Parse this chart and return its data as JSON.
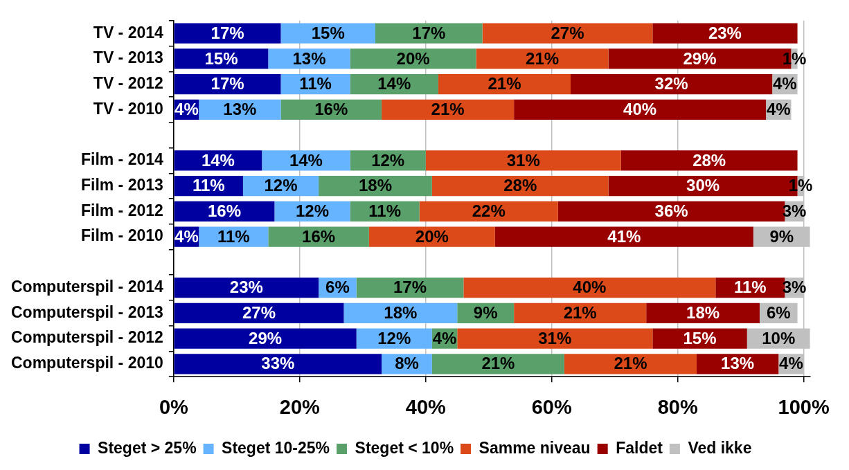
{
  "chart_data": {
    "type": "bar",
    "orientation": "horizontal",
    "stacked": true,
    "categories": [
      "TV - 2014",
      "TV - 2013",
      "TV - 2012",
      "TV - 2010",
      null,
      "Film - 2014",
      "Film - 2013",
      "Film - 2012",
      "Film - 2010",
      null,
      "Computerspil - 2014",
      "Computerspil - 2013",
      "Computerspil - 2012",
      "Computerspil - 2010"
    ],
    "series": [
      {
        "name": "Steget > 25%",
        "color": "#0000a0",
        "values": [
          17,
          15,
          17,
          4,
          null,
          14,
          11,
          16,
          4,
          null,
          23,
          27,
          29,
          33
        ],
        "value_labels": [
          "17%",
          "15%",
          "17%",
          "4%",
          null,
          "14%",
          "11%",
          "16%",
          "4%",
          null,
          "23%",
          "27%",
          "29%",
          "33%"
        ]
      },
      {
        "name": "Steget 10-25%",
        "color": "#66b3ff",
        "values": [
          15,
          13,
          11,
          13,
          null,
          14,
          12,
          12,
          11,
          null,
          6,
          18,
          12,
          8
        ],
        "value_labels": [
          "15%",
          "13%",
          "11%",
          "13%",
          null,
          "14%",
          "12%",
          "12%",
          "11%",
          null,
          "6%",
          "18%",
          "12%",
          "8%"
        ]
      },
      {
        "name": "Steget < 10%",
        "color": "#5aa06a",
        "values": [
          17,
          20,
          14,
          16,
          null,
          12,
          18,
          11,
          16,
          null,
          17,
          9,
          4,
          21
        ],
        "value_labels": [
          "17%",
          "20%",
          "14%",
          "16%",
          null,
          "12%",
          "18%",
          "11%",
          "16%",
          null,
          "17%",
          "9%",
          "4%",
          "21%"
        ]
      },
      {
        "name": "Samme niveau",
        "color": "#dc4a1a",
        "values": [
          27,
          21,
          21,
          21,
          null,
          31,
          28,
          22,
          20,
          null,
          40,
          21,
          31,
          21
        ],
        "value_labels": [
          "27%",
          "21%",
          "21%",
          "21%",
          null,
          "31%",
          "28%",
          "22%",
          "20%",
          null,
          "40%",
          "21%",
          "31%",
          "21%"
        ]
      },
      {
        "name": "Faldet",
        "color": "#990000",
        "values": [
          23,
          29,
          32,
          40,
          null,
          28,
          30,
          36,
          41,
          null,
          11,
          18,
          15,
          13
        ],
        "value_labels": [
          "23%",
          "29%",
          "32%",
          "40%",
          null,
          "28%",
          "30%",
          "36%",
          "41%",
          null,
          "11%",
          "18%",
          "15%",
          "13%"
        ]
      },
      {
        "name": "Ved ikke",
        "color": "#c0c0c0",
        "values": [
          null,
          1,
          4,
          4,
          null,
          null,
          1,
          3,
          9,
          null,
          3,
          6,
          10,
          4
        ],
        "value_labels": [
          null,
          "1%",
          "4%",
          "4%",
          null,
          null,
          "1%",
          "3%",
          "9%",
          null,
          "3%",
          "6%",
          "10%",
          "4%"
        ]
      }
    ],
    "xlim": [
      0,
      101
    ],
    "xticks": [
      {
        "value": 0,
        "label": "0%"
      },
      {
        "value": 20,
        "label": "20%"
      },
      {
        "value": 40,
        "label": "40%"
      },
      {
        "value": 60,
        "label": "60%"
      },
      {
        "value": 80,
        "label": "80%"
      },
      {
        "value": 100,
        "label": "100%"
      }
    ],
    "grid": "x",
    "legend": "bottom"
  }
}
